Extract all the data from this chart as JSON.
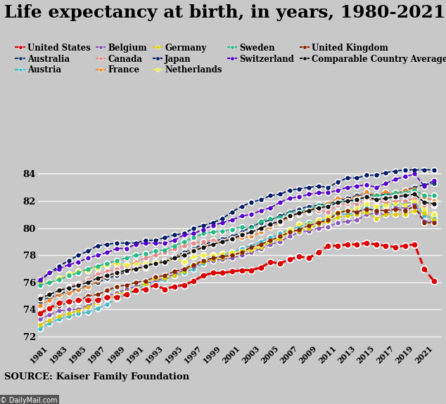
{
  "title": "Life expectancy at birth, in years, 1980-2021",
  "source": "SOURCE: Kaiser Family Foundation",
  "watermark": "© DailyMail.com",
  "years": [
    1980,
    1981,
    1982,
    1983,
    1984,
    1985,
    1986,
    1987,
    1988,
    1989,
    1990,
    1991,
    1992,
    1993,
    1994,
    1995,
    1996,
    1997,
    1998,
    1999,
    2000,
    2001,
    2002,
    2003,
    2004,
    2005,
    2006,
    2007,
    2008,
    2009,
    2010,
    2011,
    2012,
    2013,
    2014,
    2015,
    2016,
    2017,
    2018,
    2019,
    2020,
    2021
  ],
  "countries": {
    "United States": [
      73.7,
      74.1,
      74.5,
      74.6,
      74.7,
      74.7,
      74.7,
      74.9,
      74.9,
      75.1,
      75.4,
      75.5,
      75.8,
      75.5,
      75.7,
      75.8,
      76.1,
      76.5,
      76.7,
      76.7,
      76.8,
      76.9,
      76.9,
      77.1,
      77.5,
      77.4,
      77.7,
      77.9,
      77.8,
      78.2,
      78.7,
      78.7,
      78.8,
      78.8,
      78.9,
      78.8,
      78.7,
      78.6,
      78.7,
      78.8,
      77.0,
      76.1
    ],
    "Australia": [
      74.6,
      74.9,
      75.1,
      75.4,
      75.5,
      75.8,
      76.0,
      76.3,
      76.5,
      76.8,
      77.0,
      77.2,
      77.5,
      77.6,
      77.9,
      78.2,
      78.5,
      78.8,
      79.0,
      79.2,
      79.4,
      79.7,
      80.1,
      80.4,
      80.6,
      80.9,
      81.2,
      81.4,
      81.6,
      81.7,
      81.8,
      82.0,
      82.2,
      82.4,
      82.5,
      82.4,
      82.5,
      82.5,
      82.8,
      83.0,
      83.2,
      83.3
    ],
    "Austria": [
      72.6,
      73.0,
      73.3,
      73.5,
      73.7,
      73.8,
      74.1,
      74.4,
      74.8,
      75.1,
      75.5,
      75.8,
      76.0,
      76.2,
      76.5,
      76.7,
      77.0,
      77.4,
      77.7,
      78.0,
      78.2,
      78.5,
      78.7,
      79.0,
      79.3,
      79.6,
      79.9,
      80.1,
      80.4,
      80.5,
      80.7,
      81.1,
      81.0,
      81.2,
      81.5,
      81.3,
      81.8,
      81.7,
      81.8,
      82.0,
      80.9,
      80.7
    ],
    "Belgium": [
      73.3,
      73.6,
      73.9,
      74.0,
      74.0,
      74.3,
      74.6,
      75.0,
      75.2,
      75.5,
      75.7,
      75.9,
      76.1,
      76.3,
      76.6,
      76.9,
      77.2,
      77.5,
      77.6,
      77.7,
      77.8,
      78.0,
      78.2,
      78.5,
      78.8,
      79.0,
      79.4,
      79.7,
      79.8,
      80.0,
      80.1,
      80.4,
      80.5,
      80.6,
      81.0,
      81.1,
      81.0,
      81.5,
      81.5,
      81.8,
      80.5,
      80.5
    ],
    "Canada": [
      74.9,
      75.1,
      75.4,
      75.7,
      75.9,
      76.2,
      76.6,
      76.8,
      77.0,
      77.2,
      77.5,
      77.8,
      78.0,
      78.2,
      78.5,
      78.7,
      78.9,
      79.0,
      79.1,
      79.0,
      79.3,
      79.5,
      79.7,
      80.0,
      80.3,
      80.6,
      80.9,
      81.1,
      81.2,
      81.3,
      81.2,
      81.7,
      81.8,
      81.8,
      82.2,
      82.0,
      81.9,
      82.0,
      82.0,
      82.2,
      81.7,
      81.7
    ],
    "France": [
      74.3,
      74.7,
      75.1,
      75.2,
      75.5,
      75.7,
      76.1,
      76.4,
      76.6,
      76.9,
      77.0,
      77.1,
      77.4,
      77.5,
      77.8,
      78.1,
      78.4,
      78.7,
      78.8,
      79.0,
      79.2,
      79.3,
      79.4,
      79.7,
      80.1,
      80.4,
      80.8,
      81.0,
      81.3,
      81.6,
      81.8,
      82.2,
      82.1,
      82.3,
      82.7,
      82.4,
      82.7,
      82.5,
      82.8,
      82.9,
      82.3,
      82.0
    ],
    "Germany": [
      72.9,
      73.2,
      73.5,
      73.7,
      73.9,
      74.2,
      74.5,
      74.8,
      75.1,
      75.3,
      75.6,
      75.9,
      76.3,
      76.3,
      76.5,
      76.8,
      77.3,
      77.5,
      77.7,
      77.8,
      78.0,
      78.2,
      78.4,
      78.6,
      79.0,
      79.2,
      79.7,
      79.8,
      80.0,
      80.3,
      80.5,
      80.8,
      80.9,
      81.0,
      81.2,
      80.7,
      81.0,
      81.0,
      81.0,
      81.3,
      81.1,
      80.6
    ],
    "Japan": [
      76.1,
      76.7,
      77.2,
      77.6,
      78.0,
      78.3,
      78.7,
      78.8,
      78.9,
      78.9,
      78.9,
      79.1,
      79.1,
      79.3,
      79.5,
      79.6,
      80.0,
      80.2,
      80.4,
      80.7,
      81.2,
      81.6,
      81.9,
      82.1,
      82.4,
      82.5,
      82.8,
      82.9,
      83.0,
      83.1,
      83.0,
      83.4,
      83.7,
      83.7,
      83.9,
      83.9,
      84.1,
      84.2,
      84.3,
      84.3,
      84.3,
      84.3
    ],
    "Netherlands": [
      75.9,
      76.0,
      76.3,
      76.6,
      76.8,
      76.9,
      77.1,
      77.3,
      77.4,
      77.3,
      77.4,
      77.4,
      77.5,
      77.6,
      77.8,
      77.5,
      77.9,
      78.0,
      78.0,
      78.1,
      78.2,
      78.3,
      78.5,
      78.7,
      79.1,
      79.4,
      79.9,
      80.3,
      80.3,
      80.6,
      80.8,
      81.2,
      81.3,
      81.5,
      81.8,
      81.6,
      81.7,
      81.8,
      81.7,
      82.0,
      81.4,
      81.0
    ],
    "Sweden": [
      75.8,
      76.0,
      76.2,
      76.5,
      76.7,
      77.0,
      77.2,
      77.4,
      77.6,
      77.8,
      78.0,
      78.1,
      78.3,
      78.4,
      78.7,
      79.0,
      79.3,
      79.6,
      79.7,
      79.8,
      79.9,
      80.1,
      80.0,
      80.5,
      80.7,
      80.8,
      81.1,
      81.2,
      81.4,
      81.7,
      81.7,
      82.0,
      81.9,
      82.1,
      82.3,
      82.4,
      82.4,
      82.6,
      82.6,
      82.8,
      82.4,
      82.4
    ],
    "Switzerland": [
      76.2,
      76.7,
      77.0,
      77.3,
      77.5,
      77.8,
      78.0,
      78.2,
      78.5,
      78.5,
      78.8,
      78.9,
      78.9,
      78.9,
      79.1,
      79.5,
      79.6,
      79.9,
      80.2,
      80.4,
      80.6,
      80.9,
      81.0,
      81.3,
      81.5,
      81.9,
      82.2,
      82.3,
      82.5,
      82.6,
      82.6,
      82.8,
      83.0,
      83.1,
      83.2,
      83.0,
      83.3,
      83.6,
      83.8,
      84.0,
      83.1,
      83.5
    ],
    "United Kingdom": [
      73.8,
      74.1,
      74.3,
      74.5,
      74.6,
      75.0,
      75.1,
      75.4,
      75.7,
      75.8,
      76.0,
      76.1,
      76.4,
      76.5,
      76.8,
      77.0,
      77.3,
      77.6,
      77.8,
      77.9,
      78.0,
      78.2,
      78.6,
      78.8,
      79.1,
      79.4,
      79.7,
      79.9,
      80.2,
      80.4,
      80.6,
      81.1,
      81.3,
      81.2,
      81.4,
      81.3,
      81.3,
      81.4,
      81.3,
      81.6,
      80.4,
      80.4
    ],
    "Comparable Country Average": [
      74.8,
      75.1,
      75.4,
      75.6,
      75.8,
      76.0,
      76.3,
      76.5,
      76.7,
      76.9,
      77.0,
      77.2,
      77.4,
      77.5,
      77.8,
      78.0,
      78.3,
      78.6,
      78.8,
      79.0,
      79.2,
      79.5,
      79.7,
      80.0,
      80.3,
      80.5,
      80.9,
      81.1,
      81.3,
      81.5,
      81.6,
      81.9,
      82.0,
      82.1,
      82.3,
      82.1,
      82.2,
      82.3,
      82.4,
      82.5,
      81.9,
      81.8
    ]
  },
  "colors": {
    "United States": "#dd0000",
    "Australia": "#1a3a6b",
    "Austria": "#44bbcc",
    "Belgium": "#8855bb",
    "Canada": "#ee8888",
    "France": "#ee8833",
    "Germany": "#ddcc00",
    "Japan": "#001a66",
    "Netherlands": "#eeee44",
    "Sweden": "#22bb88",
    "Switzerland": "#5500cc",
    "United Kingdom": "#882200",
    "Comparable Country Average": "#111111"
  },
  "legend_order": [
    "United States",
    "Australia",
    "Austria",
    "Belgium",
    "Canada",
    "France",
    "Germany",
    "Japan",
    "Netherlands",
    "Sweden",
    "Switzerland",
    "United Kingdom",
    "Comparable Country Average"
  ],
  "ylim": [
    71.5,
    85.5
  ],
  "yticks": [
    72,
    74,
    76,
    78,
    80,
    82,
    84
  ],
  "background_color": "#c8c8c8",
  "title_fontsize": 18,
  "legend_fontsize": 8.5
}
